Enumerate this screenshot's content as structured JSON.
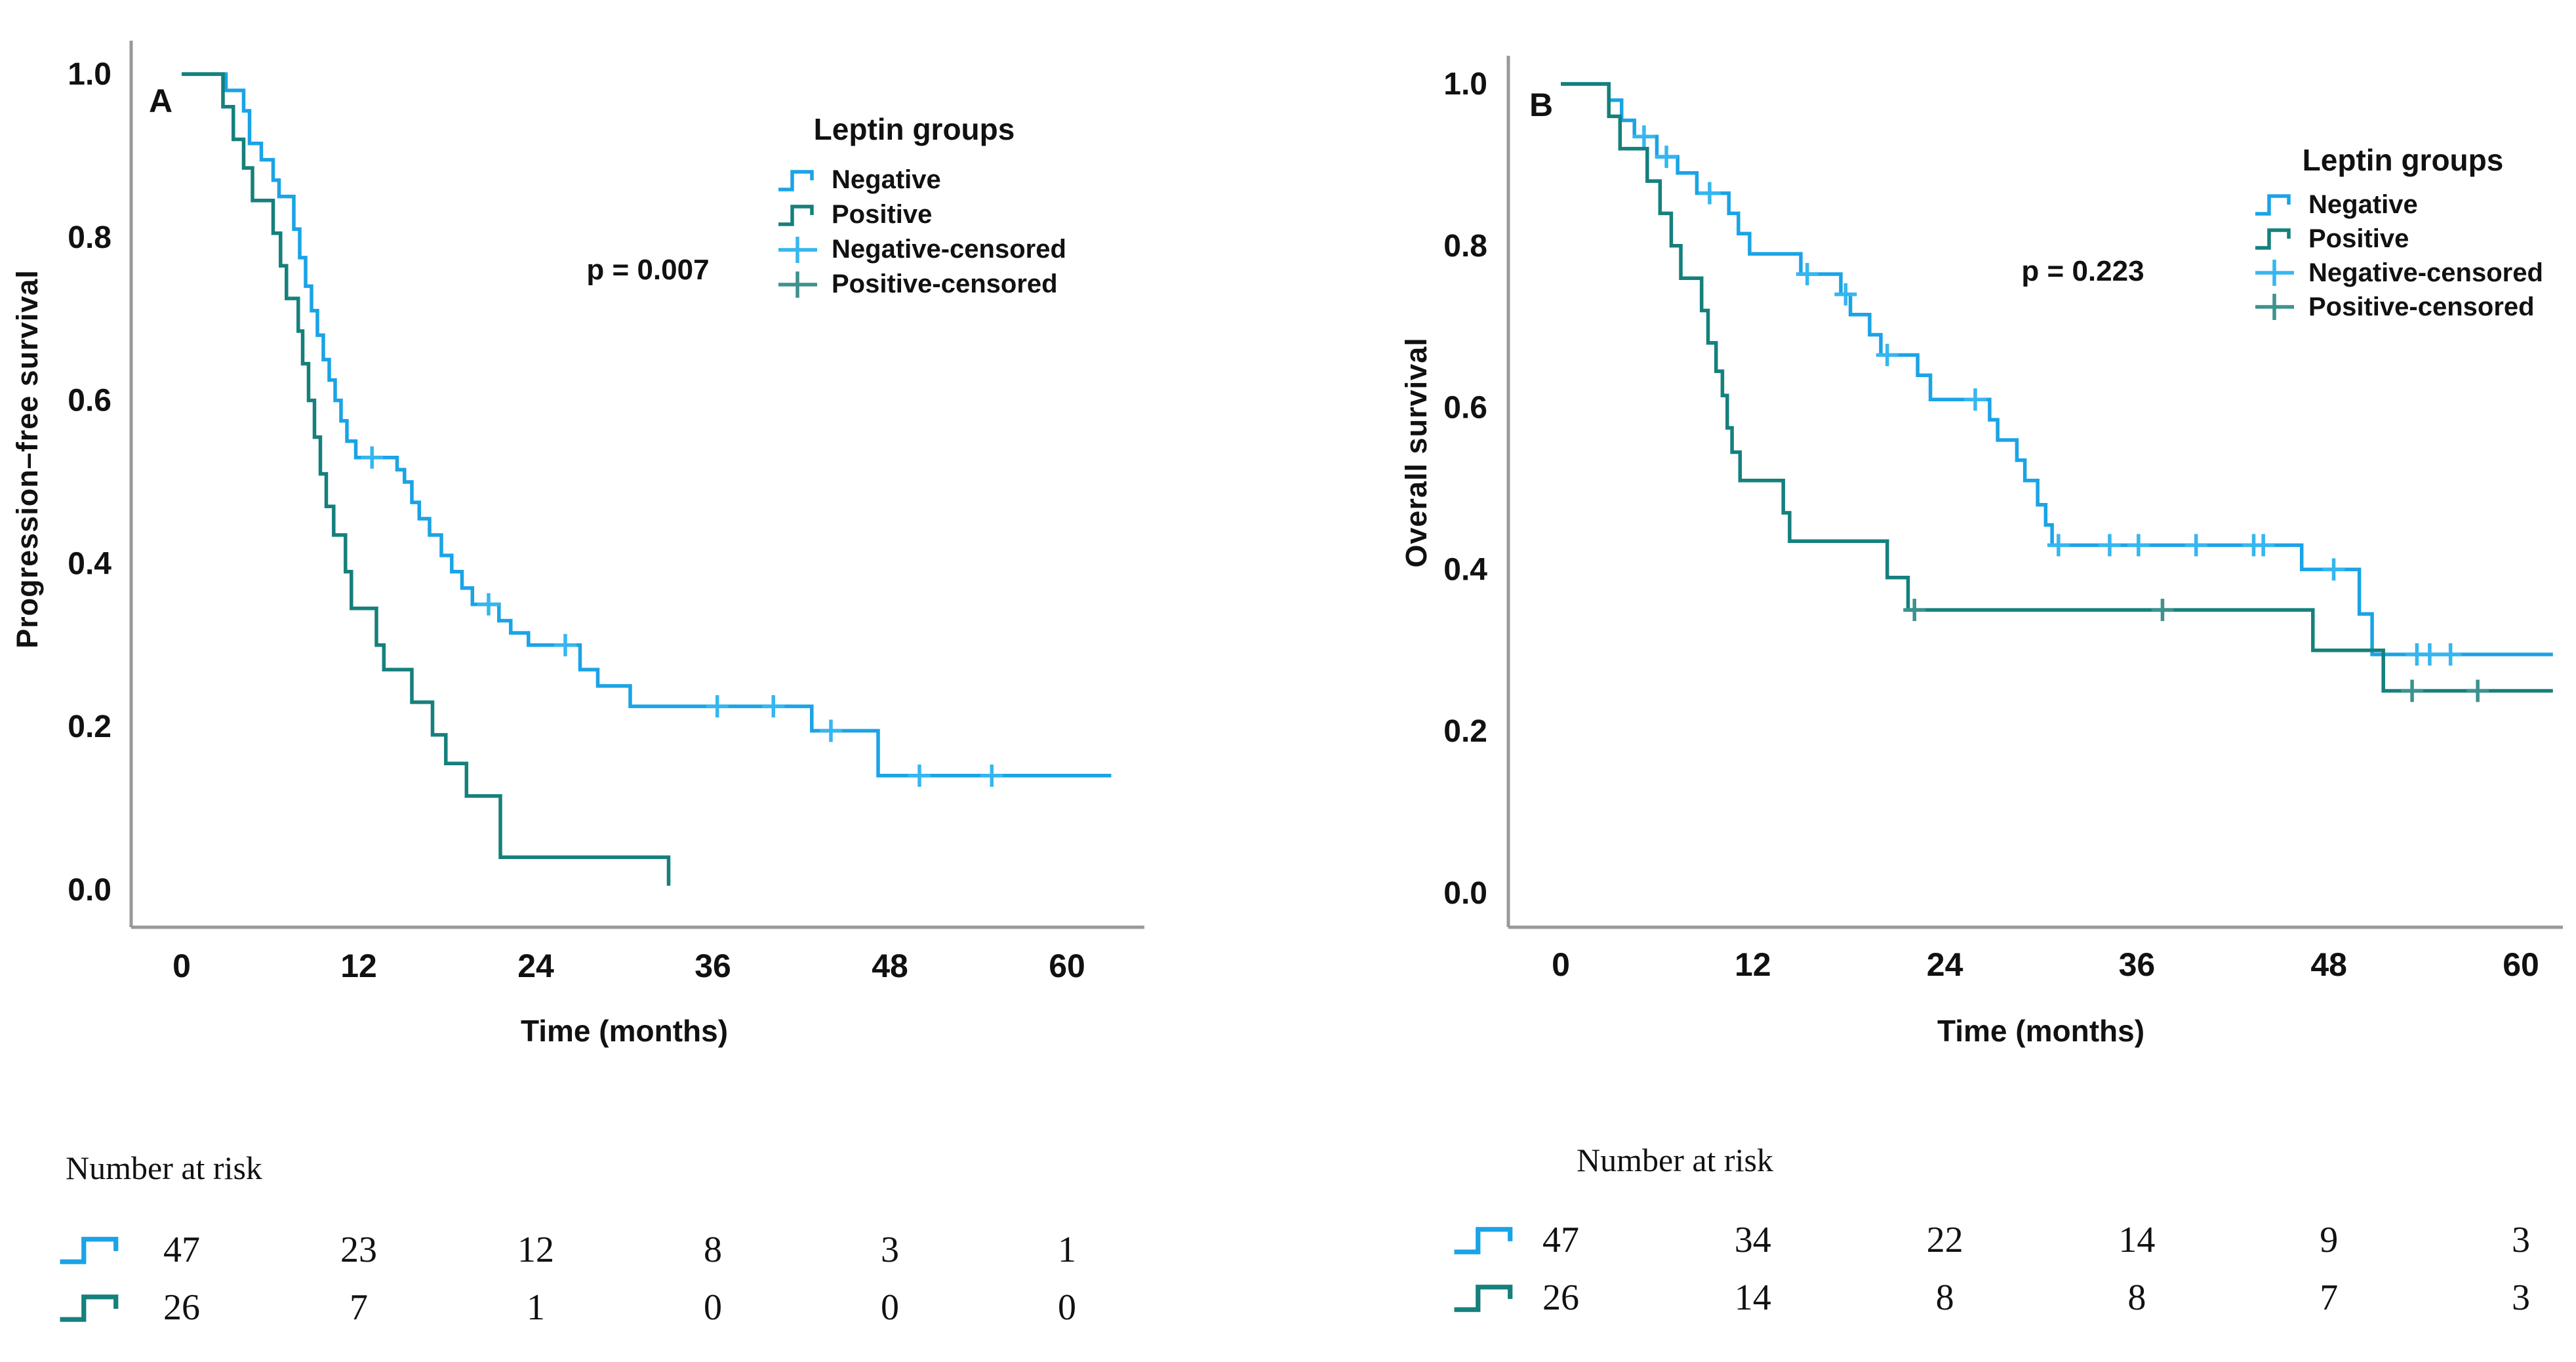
{
  "colors": {
    "negative": "#1BA3E6",
    "positive": "#15807C",
    "negative_censored": "#36B6F0",
    "positive_censored": "#3D928E",
    "axis": "#999999",
    "text": "#111111"
  },
  "chart_data": [
    {
      "type": "line",
      "subtype": "kaplan-meier-step",
      "panel_label": "A",
      "ylabel": "Progression–free survival",
      "xlabel": "Time (months)",
      "p_label": "p = 0.007",
      "legend_title": "Leptin groups",
      "legend_items": [
        {
          "label": "Negative",
          "marker": "step",
          "series": "negative"
        },
        {
          "label": "Positive",
          "marker": "step",
          "series": "positive"
        },
        {
          "label": "Negative-censored",
          "marker": "plus",
          "series": "negative_censored"
        },
        {
          "label": "Positive-censored",
          "marker": "plus",
          "series": "positive_censored"
        }
      ],
      "x_ticks": [
        0,
        12,
        24,
        36,
        48,
        60
      ],
      "y_ticks": [
        "1.0",
        "0.8",
        "0.6",
        "0.4",
        "0.2",
        "0.0"
      ],
      "xlim": [
        0,
        63
      ],
      "ylim": [
        0,
        1.0
      ],
      "series": [
        {
          "name": "Negative",
          "n": 47,
          "steps": [
            [
              0,
              1.0
            ],
            [
              3,
              0.98
            ],
            [
              4.2,
              0.955
            ],
            [
              4.6,
              0.915
            ],
            [
              5.4,
              0.895
            ],
            [
              6.2,
              0.87
            ],
            [
              6.6,
              0.85
            ],
            [
              7.6,
              0.81
            ],
            [
              8,
              0.775
            ],
            [
              8.4,
              0.74
            ],
            [
              8.8,
              0.71
            ],
            [
              9.2,
              0.68
            ],
            [
              9.6,
              0.65
            ],
            [
              10,
              0.625
            ],
            [
              10.4,
              0.6
            ],
            [
              10.8,
              0.575
            ],
            [
              11.2,
              0.55
            ],
            [
              11.8,
              0.53
            ],
            [
              14.6,
              0.515
            ],
            [
              15.1,
              0.5
            ],
            [
              15.6,
              0.475
            ],
            [
              16.1,
              0.455
            ],
            [
              16.8,
              0.435
            ],
            [
              17.6,
              0.41
            ],
            [
              18.3,
              0.39
            ],
            [
              19,
              0.37
            ],
            [
              19.7,
              0.35
            ],
            [
              21.5,
              0.33
            ],
            [
              22.3,
              0.315
            ],
            [
              23.5,
              0.3
            ],
            [
              27,
              0.27
            ],
            [
              28.2,
              0.25
            ],
            [
              30.4,
              0.225
            ],
            [
              42.7,
              0.195
            ],
            [
              47.2,
              0.14
            ],
            [
              63,
              0.14
            ]
          ],
          "censors": [
            [
              12.9,
              0.53
            ],
            [
              20.8,
              0.35
            ],
            [
              26,
              0.3
            ],
            [
              36.3,
              0.225
            ],
            [
              40.1,
              0.225
            ],
            [
              44,
              0.195
            ],
            [
              50,
              0.14
            ],
            [
              54.9,
              0.14
            ]
          ]
        },
        {
          "name": "Positive",
          "n": 26,
          "steps": [
            [
              0,
              1.0
            ],
            [
              2.8,
              0.96
            ],
            [
              3.5,
              0.92
            ],
            [
              4.2,
              0.885
            ],
            [
              4.8,
              0.845
            ],
            [
              6.2,
              0.805
            ],
            [
              6.7,
              0.765
            ],
            [
              7.1,
              0.725
            ],
            [
              7.9,
              0.685
            ],
            [
              8.2,
              0.645
            ],
            [
              8.6,
              0.6
            ],
            [
              9,
              0.555
            ],
            [
              9.4,
              0.51
            ],
            [
              9.8,
              0.47
            ],
            [
              10.3,
              0.435
            ],
            [
              11.1,
              0.39
            ],
            [
              11.5,
              0.345
            ],
            [
              13.2,
              0.3
            ],
            [
              13.7,
              0.27
            ],
            [
              15.6,
              0.23
            ],
            [
              17,
              0.19
            ],
            [
              17.9,
              0.155
            ],
            [
              19.3,
              0.115
            ],
            [
              21.6,
              0.04
            ],
            [
              33,
              0.005
            ]
          ],
          "censors": []
        }
      ],
      "at_risk": {
        "title": "Number at risk",
        "columns": [
          0,
          12,
          24,
          36,
          48,
          60
        ],
        "rows": [
          {
            "name": "Negative",
            "values": [
              47,
              23,
              12,
              8,
              3,
              1
            ]
          },
          {
            "name": "Positive",
            "values": [
              26,
              7,
              1,
              0,
              0,
              0
            ]
          }
        ]
      }
    },
    {
      "type": "line",
      "subtype": "kaplan-meier-step",
      "panel_label": "B",
      "ylabel": "Overall survival",
      "xlabel": "Time (months)",
      "p_label": "p = 0.223",
      "legend_title": "Leptin groups",
      "legend_items": [
        {
          "label": "Negative",
          "marker": "step",
          "series": "negative"
        },
        {
          "label": "Positive",
          "marker": "step",
          "series": "positive"
        },
        {
          "label": "Negative-censored",
          "marker": "plus",
          "series": "negative_censored"
        },
        {
          "label": "Positive-censored",
          "marker": "plus",
          "series": "positive_censored"
        }
      ],
      "x_ticks": [
        0,
        12,
        24,
        36,
        48,
        60
      ],
      "y_ticks": [
        "1.0",
        "0.8",
        "0.6",
        "0.4",
        "0.2",
        "0.0"
      ],
      "xlim": [
        0,
        62
      ],
      "ylim": [
        0,
        1.0
      ],
      "series": [
        {
          "name": "Negative",
          "n": 47,
          "steps": [
            [
              0,
              1.0
            ],
            [
              3,
              0.98
            ],
            [
              3.8,
              0.955
            ],
            [
              4.6,
              0.935
            ],
            [
              6,
              0.91
            ],
            [
              7.3,
              0.89
            ],
            [
              8.5,
              0.865
            ],
            [
              10.5,
              0.84
            ],
            [
              11.1,
              0.815
            ],
            [
              11.8,
              0.79
            ],
            [
              15,
              0.765
            ],
            [
              17.5,
              0.74
            ],
            [
              18.1,
              0.715
            ],
            [
              19.3,
              0.69
            ],
            [
              20,
              0.665
            ],
            [
              22.3,
              0.64
            ],
            [
              23.1,
              0.61
            ],
            [
              26.8,
              0.585
            ],
            [
              27.3,
              0.56
            ],
            [
              28.5,
              0.535
            ],
            [
              29,
              0.51
            ],
            [
              29.8,
              0.48
            ],
            [
              30.3,
              0.455
            ],
            [
              30.7,
              0.43
            ],
            [
              46.3,
              0.4
            ],
            [
              49.9,
              0.345
            ],
            [
              50.7,
              0.295
            ],
            [
              62,
              0.295
            ]
          ],
          "censors": [
            [
              5.2,
              0.935
            ],
            [
              6.6,
              0.91
            ],
            [
              9.3,
              0.865
            ],
            [
              15.4,
              0.765
            ],
            [
              17.8,
              0.74
            ],
            [
              20.4,
              0.665
            ],
            [
              25.9,
              0.61
            ],
            [
              31.1,
              0.43
            ],
            [
              34.3,
              0.43
            ],
            [
              36.1,
              0.43
            ],
            [
              39.7,
              0.43
            ],
            [
              43.3,
              0.43
            ],
            [
              43.9,
              0.43
            ],
            [
              48.3,
              0.4
            ],
            [
              53.5,
              0.295
            ],
            [
              54.3,
              0.295
            ],
            [
              55.6,
              0.295
            ]
          ]
        },
        {
          "name": "Positive",
          "n": 26,
          "steps": [
            [
              0,
              1.0
            ],
            [
              3,
              0.96
            ],
            [
              3.7,
              0.92
            ],
            [
              5.4,
              0.88
            ],
            [
              6.2,
              0.84
            ],
            [
              6.9,
              0.8
            ],
            [
              7.5,
              0.76
            ],
            [
              8.8,
              0.72
            ],
            [
              9.2,
              0.68
            ],
            [
              9.7,
              0.645
            ],
            [
              10.1,
              0.615
            ],
            [
              10.4,
              0.575
            ],
            [
              10.7,
              0.545
            ],
            [
              11.2,
              0.51
            ],
            [
              13.9,
              0.47
            ],
            [
              14.3,
              0.435
            ],
            [
              20.4,
              0.39
            ],
            [
              21.7,
              0.35
            ],
            [
              47,
              0.3
            ],
            [
              51.4,
              0.25
            ],
            [
              62,
              0.25
            ]
          ],
          "censors": [
            [
              22.1,
              0.35
            ],
            [
              37.6,
              0.35
            ],
            [
              53.2,
              0.25
            ],
            [
              57.3,
              0.25
            ]
          ]
        }
      ],
      "at_risk": {
        "title": "Number at risk",
        "columns": [
          0,
          12,
          24,
          36,
          48,
          60
        ],
        "rows": [
          {
            "name": "Negative",
            "values": [
              47,
              34,
              22,
              14,
              9,
              3
            ]
          },
          {
            "name": "Positive",
            "values": [
              26,
              14,
              8,
              8,
              7,
              3
            ]
          }
        ]
      }
    }
  ]
}
